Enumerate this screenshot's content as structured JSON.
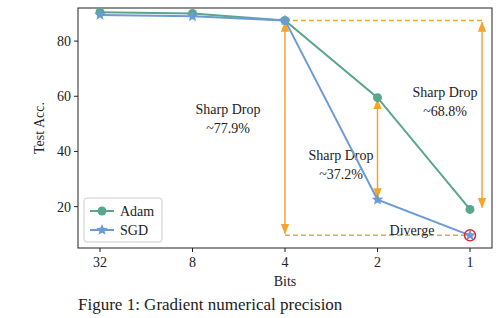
{
  "chart_data": {
    "type": "line",
    "x_label": "Bits",
    "y_label": "Test Acc.",
    "caption": "Figure 1:  Gradient numerical precision",
    "categories": [
      "32",
      "8",
      "4",
      "2",
      "1"
    ],
    "series": [
      {
        "name": "Adam",
        "color": "#5aa68c",
        "marker": "circle",
        "values": [
          90.5,
          90,
          87.5,
          59.5,
          19
        ]
      },
      {
        "name": "SGD",
        "color": "#6b9bd6",
        "marker": "star",
        "values": [
          89.5,
          89,
          87.5,
          22.5,
          9.6
        ]
      }
    ],
    "annotations": [
      {
        "text": [
          "Sharp Drop",
          "~77.9%"
        ]
      },
      {
        "text": [
          "Sharp Drop",
          "~37.2%"
        ]
      },
      {
        "text": [
          "Sharp Drop",
          "~68.8%"
        ]
      },
      {
        "text": [
          "Diverge"
        ]
      }
    ],
    "ylim": [
      5,
      92
    ],
    "yticks": [
      20,
      40,
      60,
      80
    ],
    "legend": "lower left",
    "grid": false
  }
}
